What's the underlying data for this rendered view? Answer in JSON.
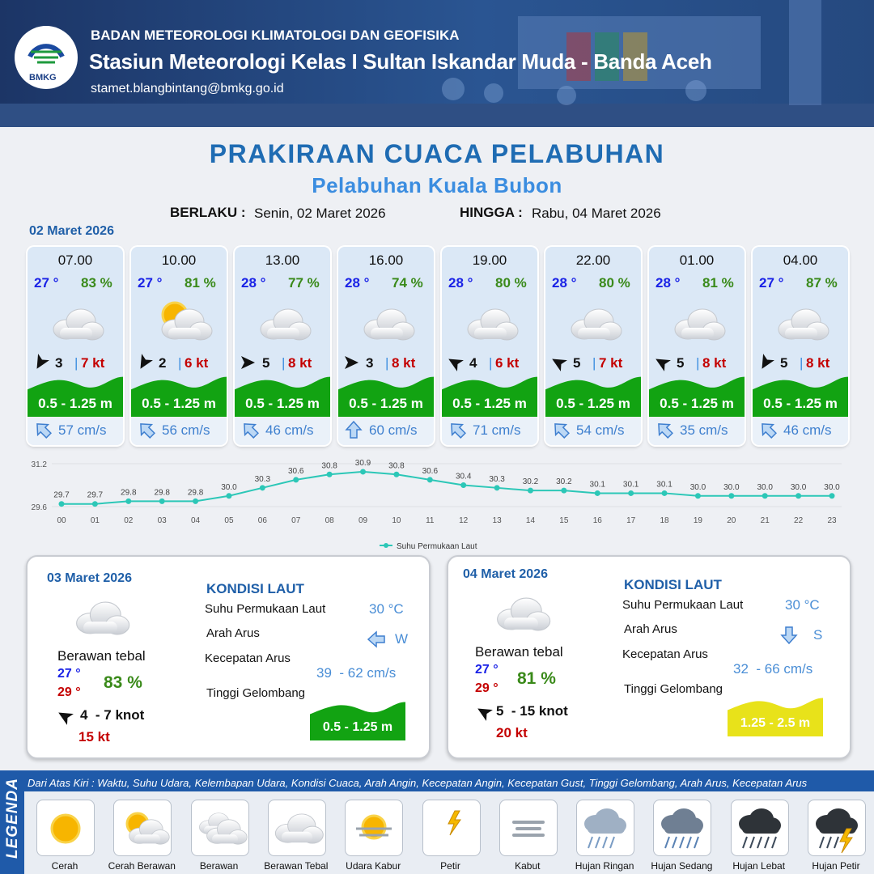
{
  "header": {
    "logo": "BMKG",
    "agency": "BADAN METEOROLOGI KLIMATOLOGI DAN GEOFISIKA",
    "station": "Stasiun Meteorologi Kelas I Sultan Iskandar Muda - Banda Aceh",
    "email": "stamet.blangbintang@bmkg.go.id"
  },
  "title": "PRAKIRAAN CUACA PELABUHAN",
  "port": "Pelabuhan Kuala Bubon",
  "validity": {
    "from_label": "BERLAKU :",
    "from": "Senin, 02 Maret 2026",
    "to_label": "HINGGA :",
    "to": "Rabu, 04 Maret 2026"
  },
  "day1": {
    "date": "02 Maret 2026",
    "wave_color": "#12a312",
    "forecasts": [
      {
        "time": "07.00",
        "temperature": "27 °",
        "humidity": "83 %",
        "wind_speed": "3",
        "gust": "7 kt",
        "wave": "0.5 - 1.25 m",
        "current": "57 cm/s"
      },
      {
        "time": "10.00",
        "temperature": "27 °",
        "humidity": "81 %",
        "wind_speed": "2",
        "gust": "6 kt",
        "wave": "0.5 - 1.25 m",
        "current": "56 cm/s"
      },
      {
        "time": "13.00",
        "temperature": "28 °",
        "humidity": "77 %",
        "wind_speed": "5",
        "gust": "8 kt",
        "wave": "0.5 - 1.25 m",
        "current": "46 cm/s"
      },
      {
        "time": "16.00",
        "temperature": "28 °",
        "humidity": "74 %",
        "wind_speed": "3",
        "gust": "8 kt",
        "wave": "0.5 - 1.25 m",
        "current": "60 cm/s"
      },
      {
        "time": "19.00",
        "temperature": "28 °",
        "humidity": "80 %",
        "wind_speed": "4",
        "gust": "6 kt",
        "wave": "0.5 - 1.25 m",
        "current": "71 cm/s"
      },
      {
        "time": "22.00",
        "temperature": "28 °",
        "humidity": "80 %",
        "wind_speed": "5",
        "gust": "7 kt",
        "wave": "0.5 - 1.25 m",
        "current": "54 cm/s"
      },
      {
        "time": "01.00",
        "temperature": "28 °",
        "humidity": "81 %",
        "wind_speed": "5",
        "gust": "8 kt",
        "wave": "0.5 - 1.25 m",
        "current": "35 cm/s"
      },
      {
        "time": "04.00",
        "temperature": "27 °",
        "humidity": "87 %",
        "wind_speed": "5",
        "gust": "8 kt",
        "wave": "0.5 - 1.25 m",
        "current": "46 cm/s"
      }
    ]
  },
  "chart_data": {
    "type": "line",
    "categories": [
      "00",
      "01",
      "02",
      "03",
      "04",
      "05",
      "06",
      "07",
      "08",
      "09",
      "10",
      "11",
      "12",
      "13",
      "14",
      "15",
      "16",
      "17",
      "18",
      "19",
      "20",
      "21",
      "22",
      "23"
    ],
    "series": [
      {
        "name": "Suhu Permukaan Laut",
        "color": "#2cc7b7",
        "values": [
          29.7,
          29.7,
          29.8,
          29.8,
          29.8,
          30.0,
          30.3,
          30.6,
          30.8,
          30.9,
          30.8,
          30.6,
          30.4,
          30.3,
          30.2,
          30.2,
          30.1,
          30.1,
          30.1,
          30.0,
          30.0,
          30.0,
          30.0,
          30.0
        ],
        "value_labels": [
          "29.7",
          "29.7",
          "29.8",
          "29.8",
          "29.8",
          "30.0",
          "30.3",
          "30.6",
          "30.8",
          "30.9",
          "30.8",
          "30.6",
          "30.4",
          "30.3",
          "30.2",
          "30.2",
          "30.1",
          "30.1",
          "30.1",
          "30.0",
          "30.0",
          "30.0",
          "30.0",
          "30.0"
        ]
      }
    ],
    "ylim": [
      29.6,
      31.2
    ],
    "yticks": [
      29.6,
      31.2
    ],
    "grid": true,
    "legend": "bottom"
  },
  "days": [
    {
      "date": "03 Maret 2026",
      "condition": "Berawan tebal",
      "temp_min": "27 °",
      "temp_max": "29 °",
      "humidity": "83 %",
      "wind": "4  - 7 knot",
      "gust": "15 kt",
      "sea": {
        "title": "KONDISI LAUT",
        "sst_label": "Suhu Permukaan Laut",
        "sst": "30 °C",
        "direction_label": "Arah Arus",
        "direction": "W",
        "speed_label": "Kecepatan Arus",
        "speed": "39  - 62 cm/s",
        "wave_label": "Tinggi Gelombang",
        "wave": "0.5 - 1.25 m",
        "wave_color": "#12a312"
      }
    },
    {
      "date": "04 Maret 2026",
      "condition": "Berawan tebal",
      "temp_min": "27 °",
      "temp_max": "29 °",
      "humidity": "81 %",
      "wind": "5  - 15 knot",
      "gust": "20 kt",
      "sea": {
        "title": "KONDISI LAUT",
        "sst_label": "Suhu Permukaan Laut",
        "sst": "30 °C",
        "direction_label": "Arah Arus",
        "direction": "S",
        "speed_label": "Kecepatan Arus",
        "speed": "32  - 66 cm/s",
        "wave_label": "Tinggi Gelombang",
        "wave": "1.25 - 2.5 m",
        "wave_color": "#e8e21a"
      }
    }
  ],
  "legend": {
    "title": "LEGENDA",
    "description": "Dari Atas Kiri : Waktu, Suhu Udara, Kelembapan Udara, Kondisi Cuaca, Arah Angin, Kecepatan Angin, Kecepatan Gust, Tinggi Gelombang, Arah Arus, Kecepatan Arus",
    "items": [
      "Cerah",
      "Cerah Berawan",
      "Berawan",
      "Berawan Tebal",
      "Udara Kabur",
      "Petir",
      "Kabut",
      "Hujan Ringan",
      "Hujan Sedang",
      "Hujan Lebat",
      "Hujan Petir"
    ]
  }
}
